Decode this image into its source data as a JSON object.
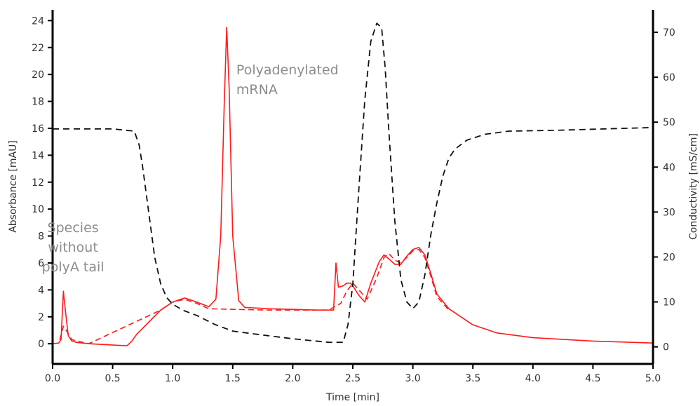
{
  "chart_data": {
    "type": "line",
    "xlabel": "Time [min]",
    "ylabel_left": "Absorbance [mAU]",
    "ylabel_right": "Conductivity [mS/cm]",
    "xlim": [
      0,
      5
    ],
    "ylim_left": [
      -1.5,
      24.8
    ],
    "ylim_right": [
      -3.8,
      75.0
    ],
    "xticks": [
      "0.0",
      "0.5",
      "1.0",
      "1.5",
      "2.0",
      "2.5",
      "3.0",
      "3.5",
      "4.0",
      "4.5",
      "5.0"
    ],
    "yticks_left": [
      "0",
      "2",
      "4",
      "6",
      "8",
      "10",
      "12",
      "14",
      "16",
      "18",
      "20",
      "22",
      "24"
    ],
    "yticks_right": [
      "0",
      "10",
      "20",
      "30",
      "40",
      "50",
      "60",
      "70"
    ],
    "grid": false,
    "colors": {
      "absorbance": "#ff1a1a",
      "conductivity": "#111111",
      "annotation": "#8c8c8c",
      "axis": "#000000"
    },
    "annotations": [
      {
        "lines": [
          "Polyadenylated",
          "mRNA"
        ],
        "x": 1.53,
        "y": 20.0
      },
      {
        "lines": [
          "Species",
          "without",
          "polyA tail"
        ],
        "x": 0.17,
        "y": 8.3
      }
    ],
    "series": [
      {
        "id": "absorbance-solid",
        "axis": "left",
        "style": "solid",
        "x": [
          0.0,
          0.05,
          0.07,
          0.09,
          0.11,
          0.13,
          0.16,
          0.2,
          0.3,
          0.5,
          0.62,
          0.66,
          0.7,
          0.8,
          0.9,
          1.0,
          1.1,
          1.2,
          1.3,
          1.36,
          1.4,
          1.43,
          1.45,
          1.47,
          1.5,
          1.55,
          1.6,
          1.8,
          2.0,
          2.2,
          2.34,
          2.36,
          2.38,
          2.42,
          2.45,
          2.48,
          2.5,
          2.55,
          2.6,
          2.65,
          2.72,
          2.76,
          2.8,
          2.85,
          2.9,
          2.95,
          3.0,
          3.05,
          3.1,
          3.15,
          3.2,
          3.3,
          3.5,
          3.7,
          4.0,
          4.5,
          5.0
        ],
        "y": [
          0.0,
          0.05,
          0.3,
          3.9,
          2.2,
          0.6,
          0.2,
          0.1,
          0.0,
          -0.1,
          -0.15,
          0.2,
          0.7,
          1.6,
          2.5,
          3.1,
          3.4,
          3.1,
          2.75,
          3.3,
          8.0,
          18.0,
          23.5,
          19.0,
          8.0,
          3.2,
          2.7,
          2.6,
          2.55,
          2.5,
          2.5,
          6.0,
          4.2,
          4.3,
          4.5,
          4.5,
          4.3,
          3.6,
          3.1,
          4.5,
          6.1,
          6.6,
          6.3,
          5.9,
          5.9,
          6.5,
          7.0,
          7.15,
          6.6,
          5.2,
          3.7,
          2.6,
          1.4,
          0.8,
          0.45,
          0.2,
          0.05
        ]
      },
      {
        "id": "absorbance-dashed",
        "axis": "left",
        "style": "dashed",
        "x": [
          0.06,
          0.09,
          0.12,
          0.16,
          0.3,
          0.9,
          1.0,
          1.1,
          1.2,
          1.3,
          1.5,
          1.8,
          2.0,
          2.3,
          2.4,
          2.45,
          2.5,
          2.55,
          2.62,
          2.7,
          2.76,
          2.8,
          2.85,
          2.9,
          2.95,
          3.0,
          3.05,
          3.1,
          3.15,
          3.2,
          3.3
        ],
        "y": [
          0.3,
          1.3,
          0.9,
          0.3,
          0.0,
          2.5,
          3.1,
          3.3,
          3.0,
          2.6,
          2.55,
          2.5,
          2.5,
          2.5,
          3.0,
          3.9,
          4.5,
          4.0,
          3.3,
          4.9,
          6.4,
          6.7,
          6.2,
          6.0,
          6.4,
          6.9,
          7.0,
          6.4,
          5.0,
          3.5,
          2.5
        ]
      },
      {
        "id": "conductivity",
        "axis": "right",
        "style": "dashed",
        "x": [
          0.0,
          0.5,
          0.68,
          0.72,
          0.75,
          0.8,
          0.85,
          0.9,
          0.95,
          1.0,
          1.05,
          1.1,
          1.2,
          1.35,
          1.5,
          1.7,
          2.0,
          2.3,
          2.42,
          2.46,
          2.5,
          2.55,
          2.6,
          2.65,
          2.7,
          2.74,
          2.77,
          2.8,
          2.85,
          2.9,
          2.95,
          3.0,
          3.05,
          3.1,
          3.15,
          3.2,
          3.25,
          3.3,
          3.35,
          3.45,
          3.6,
          3.8,
          4.2,
          4.6,
          5.0
        ],
        "y": [
          48.5,
          48.5,
          48.0,
          45.0,
          40.0,
          30.0,
          20.0,
          14.0,
          11.0,
          9.5,
          8.7,
          8.0,
          7.0,
          5.0,
          3.5,
          2.8,
          1.8,
          1.0,
          1.0,
          5.0,
          14.0,
          35.0,
          55.0,
          68.0,
          72.0,
          71.0,
          62.0,
          48.0,
          28.0,
          15.0,
          10.0,
          8.5,
          10.0,
          16.0,
          25.0,
          32.0,
          38.0,
          42.0,
          44.0,
          46.0,
          47.3,
          48.0,
          48.2,
          48.5,
          48.8
        ]
      }
    ]
  }
}
